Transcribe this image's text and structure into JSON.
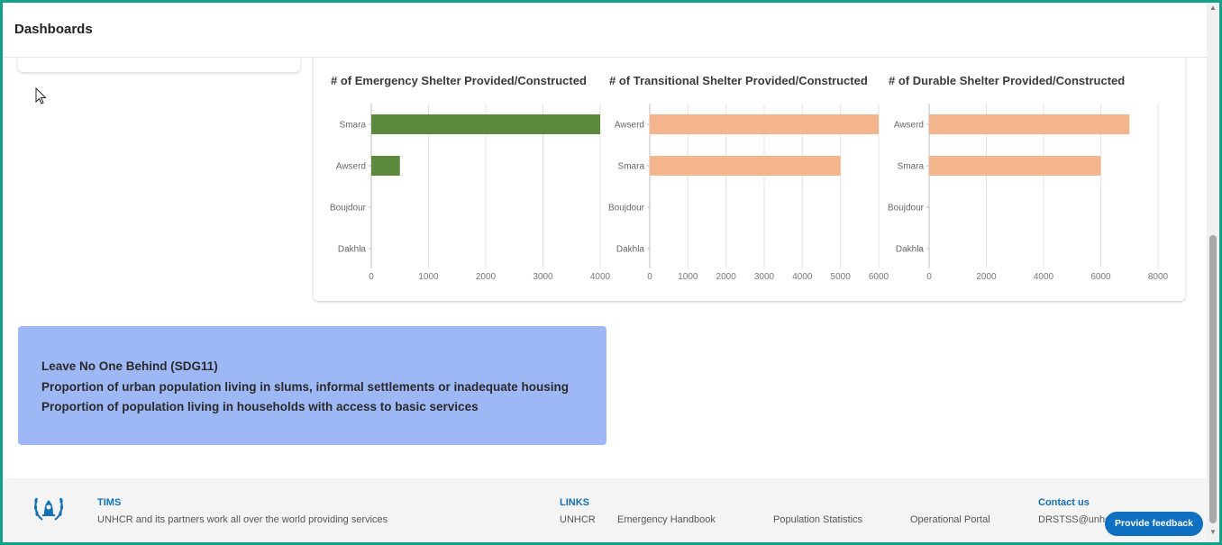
{
  "header": {
    "title": "Dashboards"
  },
  "charts": [
    {
      "title": "# of Emergency Shelter Provided/Constructed",
      "color": "#5b8a3c",
      "categories": [
        "Smara",
        "Awserd",
        "Boujdour",
        "Dakhla"
      ],
      "values": [
        4000,
        500,
        0,
        0
      ],
      "xmax": 4000,
      "ticks": [
        0,
        1000,
        2000,
        3000,
        4000
      ]
    },
    {
      "title": "# of Transitional Shelter Provided/Constructed",
      "color": "#f4b58c",
      "categories": [
        "Awserd",
        "Smara",
        "Boujdour",
        "Dakhla"
      ],
      "values": [
        6000,
        5000,
        0,
        0
      ],
      "xmax": 6000,
      "ticks": [
        0,
        1000,
        2000,
        3000,
        4000,
        5000,
        6000
      ]
    },
    {
      "title": "# of Durable Shelter Provided/Constructed",
      "color": "#f4b58c",
      "categories": [
        "Awserd",
        "Smara",
        "Boujdour",
        "Dakhla"
      ],
      "values": [
        7000,
        6000,
        0,
        0
      ],
      "xmax": 8000,
      "ticks": [
        0,
        2000,
        4000,
        6000,
        8000
      ]
    }
  ],
  "chart_data": [
    {
      "type": "bar",
      "orientation": "horizontal",
      "title": "# of Emergency Shelter Provided/Constructed",
      "categories": [
        "Smara",
        "Awserd",
        "Boujdour",
        "Dakhla"
      ],
      "values": [
        4000,
        500,
        0,
        0
      ],
      "xlim": [
        0,
        4000
      ],
      "grid": true
    },
    {
      "type": "bar",
      "orientation": "horizontal",
      "title": "# of Transitional Shelter Provided/Constructed",
      "categories": [
        "Awserd",
        "Smara",
        "Boujdour",
        "Dakhla"
      ],
      "values": [
        6000,
        5000,
        0,
        0
      ],
      "xlim": [
        0,
        6000
      ],
      "grid": true
    },
    {
      "type": "bar",
      "orientation": "horizontal",
      "title": "# of Durable Shelter Provided/Constructed",
      "categories": [
        "Awserd",
        "Smara",
        "Boujdour",
        "Dakhla"
      ],
      "values": [
        7000,
        6000,
        0,
        0
      ],
      "xlim": [
        0,
        8000
      ],
      "grid": true
    }
  ],
  "sdg": {
    "line1": "Leave No One Behind (SDG11)",
    "line2": "Proportion of urban population living in slums, informal settlements or inadequate housing",
    "line3": "Proportion of population living in households with access to basic services"
  },
  "footer": {
    "tims_heading": "TIMS",
    "tims_text": "UNHCR and its partners work all over the world providing services",
    "links_heading": "LINKS",
    "links": [
      "UNHCR",
      "Emergency Handbook",
      "Population Statistics",
      "Operational Portal"
    ],
    "contact_heading": "Contact us",
    "contact_email": "DRSTSS@unhc"
  },
  "feedback_label": "Provide feedback",
  "icons": {
    "logo": "unhcr-logo-icon",
    "cursor": "mouse-cursor-icon"
  }
}
